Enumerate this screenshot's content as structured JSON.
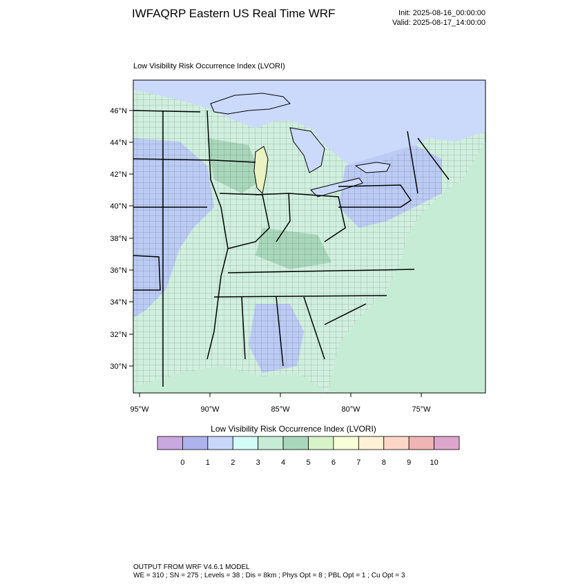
{
  "header": {
    "title": "IWFAQRP Eastern US Real Time WRF",
    "init": "Init: 2025-08-16_00:00:00",
    "valid": "Valid: 2025-08-17_14:00:00"
  },
  "map": {
    "subtitle": "Low Visibility Risk Occurrence Index   (LVORI)",
    "lat_labels": [
      "46°N",
      "44°N",
      "42°N",
      "40°N",
      "38°N",
      "36°N",
      "34°N",
      "32°N",
      "30°N"
    ],
    "lon_labels": [
      "95°W",
      "90°W",
      "85°W",
      "80°W",
      "75°W"
    ],
    "colors": {
      "water": "#cbd9fb",
      "land": "#d0efde",
      "ocean": "#c6ecd6",
      "low_risk_zone": "#bccbf4",
      "mid_zone": "#a9d7bc",
      "borders": "#000000"
    }
  },
  "colorbar": {
    "title": "Low Visibility Risk Occurrence Index  (LVORI)",
    "labels": [
      "0",
      "1",
      "2",
      "3",
      "4",
      "5",
      "6",
      "7",
      "8",
      "9",
      "10"
    ],
    "colors": [
      "#c8a8de",
      "#aeb3ee",
      "#c8d6fa",
      "#d4fcf6",
      "#c6ecd6",
      "#a9d7bc",
      "#d7f2c8",
      "#f8fed8",
      "#fff1d6",
      "#fdd6c8",
      "#f0b4b4",
      "#dca6cc"
    ]
  },
  "footer": {
    "line1": "OUTPUT FROM WRF V4.6.1 MODEL",
    "line2": "WE = 310 ; SN = 275 ; Levels = 38 ; Dis = 8km ; Phys Opt = 8 ; PBL Opt = 1 ; Cu Opt = 3"
  }
}
